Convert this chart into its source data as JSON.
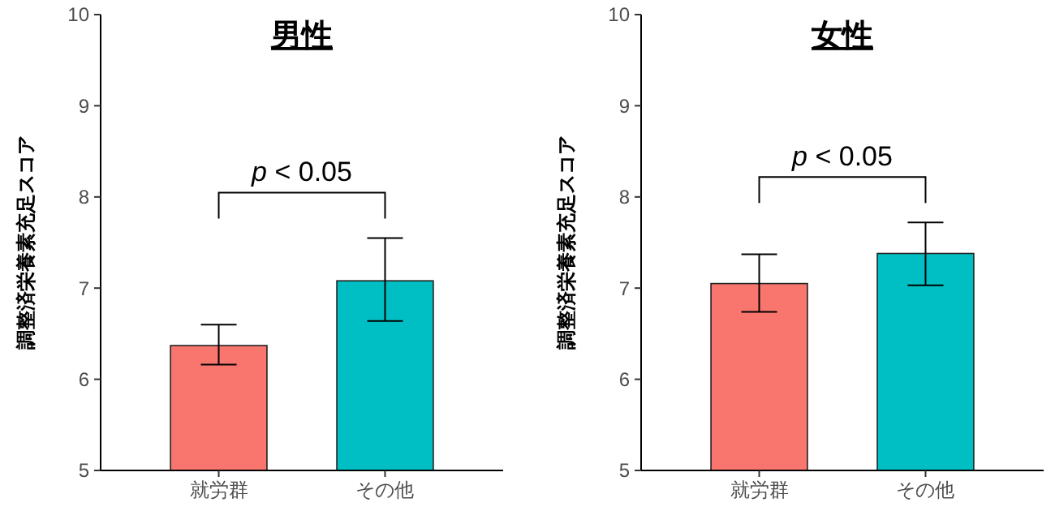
{
  "chart_data": [
    {
      "type": "bar",
      "title": "男性",
      "ylabel": "調整済栄養素充足スコア",
      "categories": [
        "就労群",
        "その他"
      ],
      "values": [
        6.37,
        7.08
      ],
      "colors": [
        "#f8766d",
        "#00bfc4"
      ],
      "errors": [
        [
          6.16,
          6.6
        ],
        [
          6.64,
          7.55
        ]
      ],
      "ylim": [
        5,
        10
      ],
      "yticks": [
        5,
        6,
        7,
        8,
        9,
        10
      ],
      "grid": false,
      "annotations": [
        "p < 0.05"
      ]
    },
    {
      "type": "bar",
      "title": "女性",
      "ylabel": "調整済栄養素充足スコア",
      "categories": [
        "就労群",
        "その他"
      ],
      "values": [
        7.05,
        7.38
      ],
      "colors": [
        "#f8766d",
        "#00bfc4"
      ],
      "errors": [
        [
          6.74,
          7.37
        ],
        [
          7.03,
          7.72
        ]
      ],
      "ylim": [
        5,
        10
      ],
      "yticks": [
        5,
        6,
        7,
        8,
        9,
        10
      ],
      "grid": false,
      "annotations": [
        "p < 0.05"
      ]
    }
  ]
}
